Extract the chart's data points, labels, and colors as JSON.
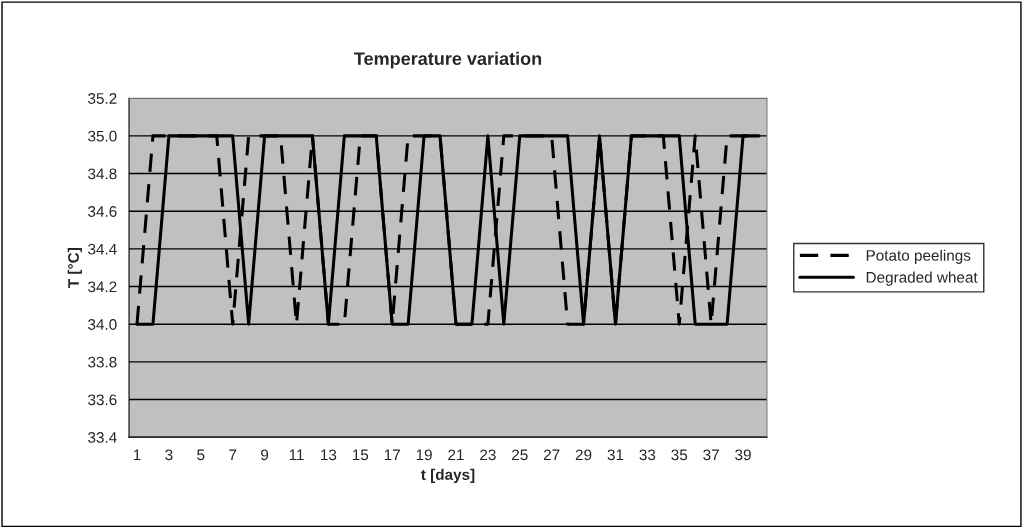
{
  "chart_data": {
    "type": "line",
    "title": "Temperature variation",
    "xlabel": "t [days]",
    "ylabel": "T [°C]",
    "categories": [
      "1",
      null,
      "3",
      null,
      "5",
      null,
      "7",
      null,
      "9",
      null,
      "11",
      null,
      "13",
      null,
      "15",
      null,
      "17",
      null,
      "19",
      null,
      "21",
      null,
      "23",
      null,
      "25",
      null,
      "27",
      null,
      "29",
      null,
      "31",
      null,
      "33",
      null,
      "35",
      null,
      "37",
      null,
      "39",
      null
    ],
    "series": [
      {
        "name": "Potato peelings",
        "color": "#000000",
        "line_style": "dashed",
        "values": [
          34,
          35,
          35,
          35,
          35,
          35,
          34,
          35,
          35,
          35,
          34,
          35,
          34,
          34,
          35,
          35,
          34,
          35,
          35,
          35,
          34,
          34,
          34,
          35,
          35,
          35,
          35,
          34,
          34,
          35,
          34,
          35,
          35,
          35,
          34,
          35,
          34,
          35,
          35,
          35
        ]
      },
      {
        "name": "Degraded wheat",
        "color": "#000000",
        "line_style": "solid",
        "values": [
          34,
          34,
          35,
          35,
          35,
          35,
          35,
          34,
          35,
          35,
          35,
          35,
          34,
          35,
          35,
          35,
          34,
          34,
          35,
          35,
          34,
          34,
          35,
          34,
          35,
          35,
          35,
          35,
          34,
          35,
          34,
          35,
          35,
          35,
          35,
          34,
          34,
          34,
          35,
          35
        ]
      }
    ],
    "ylim": [
      33.4,
      35.2
    ],
    "yticks": [
      {
        "value": 33.4,
        "label": "33.4"
      },
      {
        "value": 33.6,
        "label": "33.6"
      },
      {
        "value": 33.8,
        "label": "33.8"
      },
      {
        "value": 34.0,
        "label": "34.0"
      },
      {
        "value": 34.2,
        "label": "34.2"
      },
      {
        "value": 34.4,
        "label": "34.4"
      },
      {
        "value": 34.6,
        "label": "34.6"
      },
      {
        "value": 34.8,
        "label": "34.8"
      },
      {
        "value": 35.0,
        "label": "35.0"
      },
      {
        "value": 35.2,
        "label": "35.2"
      }
    ],
    "grid": "y",
    "legend": "right",
    "marker": "none"
  }
}
